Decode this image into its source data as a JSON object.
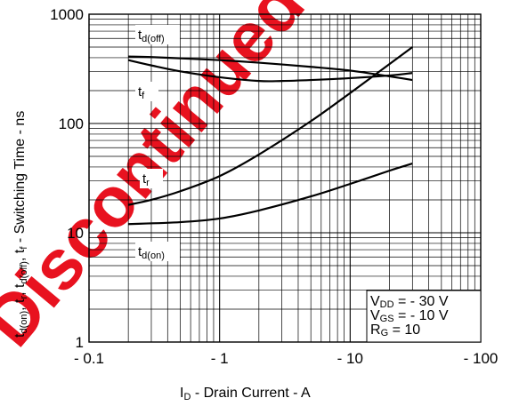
{
  "watermark": {
    "text": "Discontinued Product",
    "color": "#e8121f"
  },
  "chart_data": {
    "type": "line",
    "x_scale": "log",
    "y_scale": "log",
    "xlim": [
      0.1,
      100
    ],
    "ylim": [
      1,
      1000
    ],
    "grid": true,
    "x_tick_labels": [
      "- 0.1",
      "- 1",
      "- 10",
      "- 100"
    ],
    "y_tick_labels": [
      "1",
      "10",
      "100",
      "1000"
    ],
    "xlabel": {
      "main": "I",
      "sub": "D",
      "rest": " -  Drain Current -  A"
    },
    "ylabel": {
      "t_don": "t",
      "t_don_sub": "d(on)",
      "t_r": ", t",
      "t_r_sub": "r",
      "t_doff": ", t",
      "t_doff_sub": "d(off)",
      "t_f": ", t",
      "t_f_sub": "f",
      "rest": " -  Switching Time -  ns"
    },
    "conditions": [
      {
        "main": "V",
        "sub": "DD",
        "rest": " =   - 30 V"
      },
      {
        "main": "V",
        "sub": "GS",
        "rest": " =   - 10 V"
      },
      {
        "main": "R",
        "sub": "G",
        "rest": " = 10"
      }
    ],
    "series": [
      {
        "name": "td(off)",
        "label_main": "t",
        "label_sub": "d(off)",
        "x": [
          0.2,
          0.3,
          0.5,
          1,
          2,
          5,
          10,
          20,
          30
        ],
        "y": [
          410,
          405,
          395,
          380,
          360,
          330,
          305,
          270,
          250
        ]
      },
      {
        "name": "tf",
        "label_main": "t",
        "label_sub": "f",
        "x": [
          0.2,
          0.3,
          0.5,
          1,
          2,
          3,
          5,
          10,
          20,
          30
        ],
        "y": [
          380,
          340,
          300,
          265,
          245,
          245,
          250,
          260,
          275,
          290
        ]
      },
      {
        "name": "tr",
        "label_main": "t",
        "label_sub": "r",
        "x": [
          0.2,
          0.3,
          0.5,
          1,
          2,
          5,
          10,
          20,
          30
        ],
        "y": [
          18,
          20,
          24,
          33,
          52,
          105,
          190,
          350,
          500
        ]
      },
      {
        "name": "td(on)",
        "label_main": "t",
        "label_sub": "d(on)",
        "x": [
          0.2,
          0.5,
          1,
          2,
          5,
          10,
          20,
          30
        ],
        "y": [
          12,
          12.5,
          13.5,
          16,
          21.5,
          28,
          37,
          43
        ]
      }
    ]
  }
}
